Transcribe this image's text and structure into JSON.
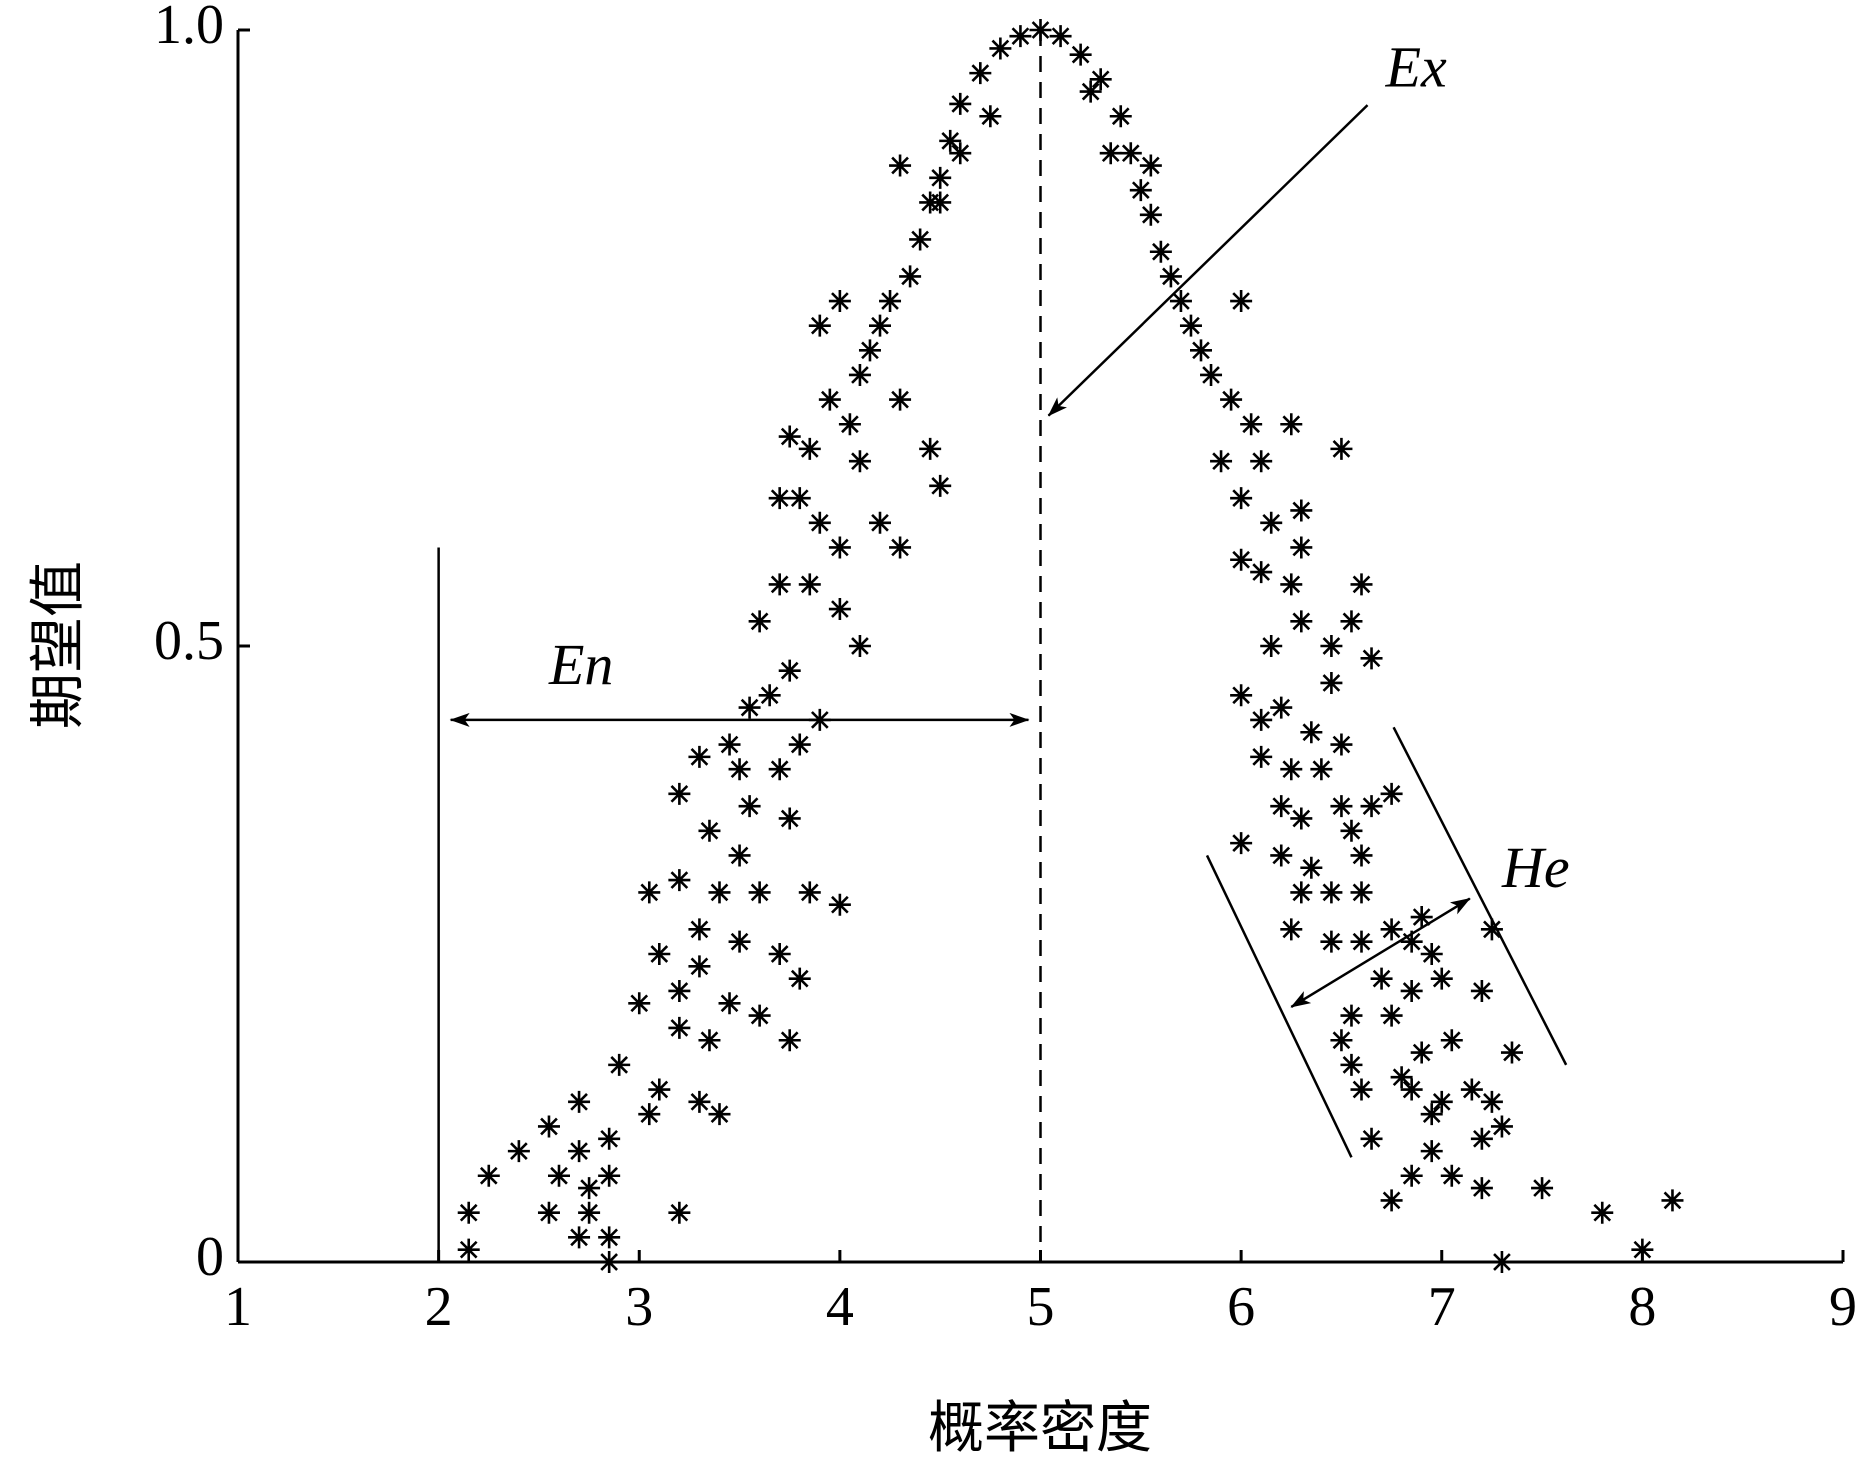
{
  "chart_data": {
    "type": "scatter",
    "xlabel": "概率密度",
    "ylabel": "期望值",
    "annotations": [
      "Ex",
      "En",
      "He"
    ],
    "xlim": [
      1,
      9
    ],
    "xticks": [
      1,
      2,
      3,
      4,
      5,
      6,
      7,
      8,
      9
    ],
    "ylim": [
      0,
      1
    ],
    "yticks": [
      0,
      0.5,
      {
        "value": 1,
        "label": "1.0"
      }
    ],
    "color": "#000000",
    "x": [
      5,
      4.9,
      5.1,
      4.8,
      5.2,
      4.7,
      5.3,
      4.6,
      5.4,
      4.55,
      5.45,
      4.5,
      5.5,
      4.45,
      5.55,
      4.4,
      5.6,
      4.3,
      4.35,
      5.65,
      4.25,
      5.7,
      4.2,
      5.75,
      4.15,
      5.8,
      4.6,
      4.75,
      5.25,
      5.55,
      4.5,
      5.35,
      4.1,
      4.0,
      3.9,
      4.05,
      3.95,
      4.1,
      4.3,
      4.45,
      4.5,
      3.85,
      3.75,
      3.9,
      4.0,
      4.2,
      4.3,
      3.8,
      3.7,
      3.85,
      4.0,
      4.1,
      3.7,
      3.6,
      3.75,
      3.65,
      3.55,
      3.8,
      3.7,
      3.9,
      3.45,
      3.5,
      3.3,
      3.55,
      3.75,
      3.2,
      3.35,
      3.5,
      3.6,
      3.05,
      3.2,
      3.4,
      3.3,
      3.5,
      3.85,
      4.0,
      3.7,
      3.8,
      3.1,
      3.3,
      3.45,
      3.0,
      3.2,
      3.6,
      3.2,
      3.35,
      3.75,
      2.9,
      3.1,
      3.3,
      3.05,
      3.4,
      2.7,
      2.55,
      2.85,
      2.7,
      2.4,
      2.25,
      2.6,
      2.75,
      2.85,
      2.15,
      2.55,
      2.75,
      3.2,
      2.7,
      2.85,
      2.15,
      2.85,
      5.85,
      6.0,
      5.95,
      6.05,
      6.1,
      6.25,
      5.9,
      6.0,
      6.15,
      6.3,
      6.25,
      6.1,
      6.0,
      6.5,
      6.3,
      6.15,
      6.3,
      6.45,
      6.55,
      6.6,
      6.45,
      6.65,
      6.0,
      6.1,
      6.2,
      6.35,
      6.5,
      6.1,
      6.25,
      6.4,
      6.2,
      6.3,
      6.5,
      6.55,
      6.65,
      6.75,
      6.0,
      6.2,
      6.35,
      6.6,
      6.45,
      6.6,
      6.3,
      6.75,
      6.9,
      6.85,
      6.6,
      6.25,
      6.45,
      6.95,
      7.25,
      6.7,
      6.85,
      7.0,
      6.55,
      6.75,
      6.5,
      7.2,
      6.9,
      7.05,
      6.55,
      6.8,
      7.35,
      6.6,
      6.85,
      7.0,
      7.15,
      6.95,
      7.25,
      6.65,
      6.95,
      7.2,
      7.3,
      6.85,
      7.05,
      6.75,
      7.2,
      7.5,
      7.8,
      8.15,
      7.3,
      8.0
    ],
    "values": [
      1,
      0.995,
      0.995,
      0.985,
      0.98,
      0.965,
      0.96,
      0.94,
      0.93,
      0.91,
      0.9,
      0.88,
      0.87,
      0.86,
      0.85,
      0.83,
      0.82,
      0.89,
      0.8,
      0.8,
      0.78,
      0.78,
      0.76,
      0.76,
      0.74,
      0.74,
      0.9,
      0.93,
      0.95,
      0.89,
      0.86,
      0.9,
      0.72,
      0.78,
      0.76,
      0.68,
      0.7,
      0.65,
      0.7,
      0.66,
      0.63,
      0.66,
      0.67,
      0.6,
      0.58,
      0.6,
      0.58,
      0.62,
      0.62,
      0.55,
      0.53,
      0.5,
      0.55,
      0.52,
      0.48,
      0.46,
      0.45,
      0.42,
      0.4,
      0.44,
      0.42,
      0.4,
      0.41,
      0.37,
      0.36,
      0.38,
      0.35,
      0.33,
      0.3,
      0.3,
      0.31,
      0.3,
      0.27,
      0.26,
      0.3,
      0.29,
      0.25,
      0.23,
      0.25,
      0.24,
      0.21,
      0.21,
      0.22,
      0.2,
      0.19,
      0.18,
      0.18,
      0.16,
      0.14,
      0.13,
      0.12,
      0.12,
      0.13,
      0.11,
      0.1,
      0.09,
      0.09,
      0.07,
      0.07,
      0.06,
      0.07,
      0.04,
      0.04,
      0.04,
      0.04,
      0.02,
      0.02,
      0.01,
      0,
      0.72,
      0.78,
      0.7,
      0.68,
      0.65,
      0.68,
      0.65,
      0.62,
      0.6,
      0.58,
      0.55,
      0.56,
      0.57,
      0.66,
      0.61,
      0.5,
      0.52,
      0.5,
      0.52,
      0.55,
      0.47,
      0.49,
      0.46,
      0.44,
      0.45,
      0.43,
      0.42,
      0.41,
      0.4,
      0.4,
      0.37,
      0.36,
      0.37,
      0.35,
      0.37,
      0.38,
      0.34,
      0.33,
      0.32,
      0.33,
      0.3,
      0.3,
      0.3,
      0.27,
      0.28,
      0.26,
      0.26,
      0.27,
      0.26,
      0.25,
      0.27,
      0.23,
      0.22,
      0.23,
      0.2,
      0.2,
      0.18,
      0.22,
      0.17,
      0.18,
      0.16,
      0.15,
      0.17,
      0.14,
      0.14,
      0.13,
      0.14,
      0.12,
      0.13,
      0.1,
      0.09,
      0.1,
      0.11,
      0.07,
      0.07,
      0.05,
      0.06,
      0.06,
      0.04,
      0.05,
      0,
      0.01
    ]
  }
}
